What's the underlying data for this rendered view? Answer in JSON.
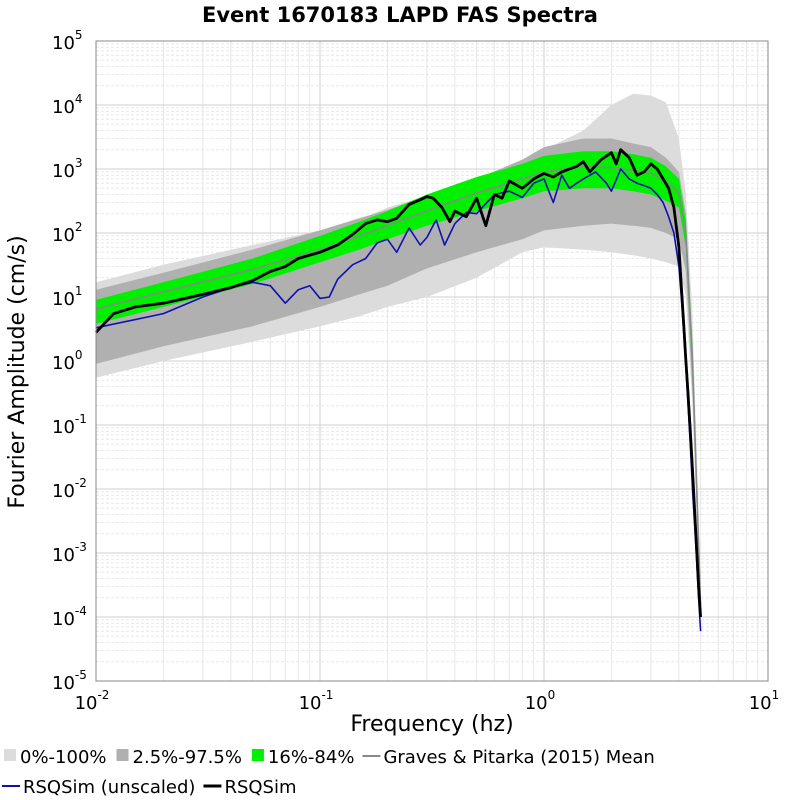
{
  "chart_data": {
    "type": "line",
    "title": "Event 1670183 LAPD FAS Spectra",
    "xlabel": "Frequency (hz)",
    "ylabel": "Fourier Amplitude (cm/s)",
    "x_scale": "log",
    "y_scale": "log",
    "xlim": [
      0.01,
      10
    ],
    "ylim": [
      1e-05,
      100000
    ],
    "grid": true,
    "legend_position": "bottom",
    "x_ticks": [
      {
        "base": "10",
        "exp": "-2",
        "value": 0.01
      },
      {
        "base": "10",
        "exp": "-1",
        "value": 0.1
      },
      {
        "base": "10",
        "exp": "0",
        "value": 1
      },
      {
        "base": "10",
        "exp": "1",
        "value": 10
      }
    ],
    "y_ticks": [
      {
        "base": "10",
        "exp": "5",
        "value": 100000
      },
      {
        "base": "10",
        "exp": "4",
        "value": 10000
      },
      {
        "base": "10",
        "exp": "3",
        "value": 1000
      },
      {
        "base": "10",
        "exp": "2",
        "value": 100
      },
      {
        "base": "10",
        "exp": "1",
        "value": 10
      },
      {
        "base": "10",
        "exp": "0",
        "value": 1
      },
      {
        "base": "10",
        "exp": "-1",
        "value": 0.1
      },
      {
        "base": "10",
        "exp": "-2",
        "value": 0.01
      },
      {
        "base": "10",
        "exp": "-3",
        "value": 0.001
      },
      {
        "base": "10",
        "exp": "-4",
        "value": 0.0001
      },
      {
        "base": "10",
        "exp": "-5",
        "value": 1e-05
      }
    ],
    "bands": [
      {
        "name": "0%-100%",
        "color": "#dcdcdc",
        "x": [
          0.01,
          0.02,
          0.05,
          0.1,
          0.15,
          0.2,
          0.3,
          0.5,
          0.8,
          1,
          1.5,
          2,
          2.5,
          3,
          3.5,
          4,
          4.3,
          4.6,
          5
        ],
        "upper": [
          17,
          32,
          65,
          110,
          160,
          250,
          380,
          620,
          1400,
          2000,
          4000,
          10000,
          15000,
          14000,
          11000,
          3000,
          400,
          5,
          0.0004
        ],
        "lower": [
          0.55,
          1.0,
          2.0,
          3.5,
          5.0,
          7.0,
          10,
          20,
          50,
          60,
          55,
          50,
          45,
          40,
          35,
          30,
          10,
          0.2,
          8e-05
        ]
      },
      {
        "name": "2.5%-97.5%",
        "color": "#b0b0b0",
        "x": [
          0.01,
          0.02,
          0.05,
          0.1,
          0.15,
          0.2,
          0.3,
          0.5,
          0.8,
          1,
          1.5,
          2,
          2.5,
          3,
          3.5,
          4,
          4.3,
          4.6,
          5
        ],
        "upper": [
          13,
          24,
          55,
          110,
          170,
          230,
          380,
          700,
          1400,
          2200,
          3000,
          3000,
          2500,
          2200,
          1500,
          900,
          200,
          2,
          0.0003
        ],
        "lower": [
          0.9,
          1.7,
          3.5,
          7.0,
          11,
          15,
          28,
          50,
          80,
          110,
          130,
          140,
          130,
          120,
          100,
          80,
          25,
          0.3,
          0.0001
        ]
      },
      {
        "name": "16%-84%",
        "color": "#00f000",
        "x": [
          0.01,
          0.02,
          0.05,
          0.1,
          0.15,
          0.2,
          0.3,
          0.5,
          0.8,
          1,
          1.5,
          2,
          2.5,
          3,
          3.5,
          4,
          4.3,
          4.6,
          5
        ],
        "upper": [
          9,
          17,
          40,
          90,
          150,
          220,
          400,
          750,
          1200,
          1600,
          1900,
          1900,
          1700,
          1500,
          1100,
          700,
          150,
          1.5,
          0.0002
        ],
        "lower": [
          3.8,
          7.0,
          16,
          35,
          55,
          80,
          130,
          220,
          350,
          450,
          500,
          500,
          450,
          400,
          320,
          250,
          60,
          0.5,
          0.00012
        ]
      }
    ],
    "series": [
      {
        "name": "Graves & Pitarka (2015) Mean",
        "color": "#888888",
        "x": [
          0.01,
          0.02,
          0.05,
          0.1,
          0.15,
          0.2,
          0.3,
          0.5,
          0.8,
          1,
          1.5,
          2,
          2.5,
          3,
          3.5,
          4,
          4.3,
          4.6,
          5
        ],
        "values": [
          6.5,
          12,
          27,
          55,
          90,
          130,
          220,
          420,
          700,
          900,
          1100,
          1050,
          950,
          850,
          650,
          420,
          95,
          1.0,
          0.00015
        ]
      },
      {
        "name": "RSQSim (unscaled)",
        "color": "#1010b0",
        "x": [
          0.01,
          0.02,
          0.03,
          0.04,
          0.05,
          0.06,
          0.07,
          0.08,
          0.09,
          0.1,
          0.11,
          0.12,
          0.14,
          0.16,
          0.18,
          0.2,
          0.22,
          0.25,
          0.28,
          0.3,
          0.33,
          0.36,
          0.4,
          0.45,
          0.5,
          0.6,
          0.7,
          0.8,
          0.9,
          1.0,
          1.1,
          1.2,
          1.3,
          1.4,
          1.5,
          1.7,
          1.9,
          2.0,
          2.2,
          2.4,
          2.6,
          2.8,
          3.0,
          3.2,
          3.4,
          3.6,
          3.8,
          4.0,
          4.1,
          4.2,
          4.3,
          4.4,
          4.5,
          4.6,
          4.7,
          4.8,
          4.9,
          5.0
        ],
        "values": [
          3.3,
          5.5,
          10,
          14,
          17,
          15,
          8,
          13,
          15,
          9.5,
          10,
          19,
          32,
          40,
          70,
          80,
          50,
          120,
          65,
          85,
          160,
          65,
          140,
          210,
          200,
          400,
          450,
          360,
          600,
          700,
          300,
          800,
          500,
          600,
          700,
          900,
          600,
          450,
          1000,
          700,
          600,
          550,
          500,
          400,
          300,
          180,
          100,
          30,
          10,
          3,
          0.8,
          0.2,
          0.05,
          0.01,
          0.003,
          0.0008,
          0.0002,
          6e-05
        ]
      },
      {
        "name": "RSQSim",
        "color": "#000000",
        "x": [
          0.01,
          0.012,
          0.015,
          0.02,
          0.025,
          0.03,
          0.04,
          0.05,
          0.06,
          0.07,
          0.08,
          0.09,
          0.1,
          0.12,
          0.14,
          0.16,
          0.18,
          0.2,
          0.22,
          0.25,
          0.28,
          0.3,
          0.32,
          0.35,
          0.38,
          0.4,
          0.45,
          0.5,
          0.55,
          0.6,
          0.65,
          0.7,
          0.8,
          0.9,
          1.0,
          1.1,
          1.2,
          1.3,
          1.4,
          1.5,
          1.6,
          1.8,
          2.0,
          2.1,
          2.2,
          2.4,
          2.6,
          2.8,
          3.0,
          3.2,
          3.4,
          3.6,
          3.8,
          4.0,
          4.1,
          4.2,
          4.3,
          4.4,
          4.5,
          4.6,
          4.7,
          4.8,
          4.9,
          5.0
        ],
        "values": [
          2.8,
          5.5,
          7.0,
          8.0,
          9.5,
          11,
          14,
          18,
          25,
          30,
          40,
          45,
          50,
          65,
          95,
          140,
          160,
          150,
          170,
          280,
          330,
          370,
          350,
          250,
          150,
          220,
          180,
          350,
          130,
          400,
          350,
          650,
          500,
          700,
          850,
          750,
          900,
          1000,
          1100,
          1300,
          900,
          1400,
          1800,
          1200,
          2000,
          1500,
          800,
          900,
          1200,
          1000,
          700,
          500,
          250,
          60,
          15,
          4,
          1,
          0.3,
          0.08,
          0.02,
          0.005,
          0.0012,
          0.0003,
          0.0001
        ]
      }
    ],
    "legend": [
      {
        "label": "0%-100%",
        "kind": "box",
        "color": "#dcdcdc"
      },
      {
        "label": "2.5%-97.5%",
        "kind": "box",
        "color": "#b0b0b0"
      },
      {
        "label": "16%-84%",
        "kind": "box",
        "color": "#00f000"
      },
      {
        "label": "Graves & Pitarka (2015) Mean",
        "kind": "line",
        "color": "#888888"
      },
      {
        "label": "RSQSim (unscaled)",
        "kind": "line",
        "color": "#1010b0"
      },
      {
        "label": "RSQSim",
        "kind": "line",
        "color": "#000000"
      }
    ]
  }
}
